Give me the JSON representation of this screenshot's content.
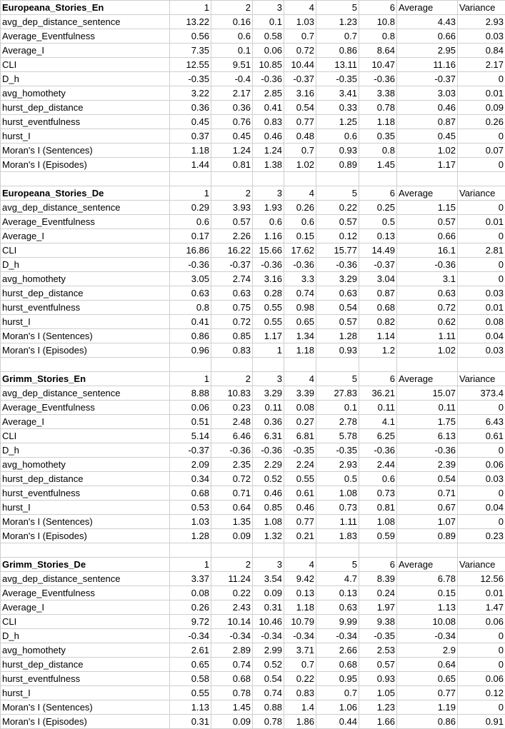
{
  "columns": [
    "1",
    "2",
    "3",
    "4",
    "5",
    "6",
    "Average",
    "Variance"
  ],
  "sections": [
    {
      "title": "Europeana_Stories_En",
      "rows": [
        {
          "name": "avg_dep_distance_sentence",
          "values": [
            "13.22",
            "0.16",
            "0.1",
            "1.03",
            "1.23",
            "10.8",
            "4.43",
            "2.93"
          ]
        },
        {
          "name": "Average_Eventfulness",
          "values": [
            "0.56",
            "0.6",
            "0.58",
            "0.7",
            "0.7",
            "0.8",
            "0.66",
            "0.03"
          ]
        },
        {
          "name": "Average_I",
          "values": [
            "7.35",
            "0.1",
            "0.06",
            "0.72",
            "0.86",
            "8.64",
            "2.95",
            "0.84"
          ]
        },
        {
          "name": "CLI",
          "values": [
            "12.55",
            "9.51",
            "10.85",
            "10.44",
            "13.11",
            "10.47",
            "11.16",
            "2.17"
          ]
        },
        {
          "name": "D_h",
          "values": [
            "-0.35",
            "-0.4",
            "-0.36",
            "-0.37",
            "-0.35",
            "-0.36",
            "-0.37",
            "0"
          ]
        },
        {
          "name": "avg_homothety",
          "values": [
            "3.22",
            "2.17",
            "2.85",
            "3.16",
            "3.41",
            "3.38",
            "3.03",
            "0.01"
          ]
        },
        {
          "name": "hurst_dep_distance",
          "values": [
            "0.36",
            "0.36",
            "0.41",
            "0.54",
            "0.33",
            "0.78",
            "0.46",
            "0.09"
          ]
        },
        {
          "name": "hurst_eventfulness",
          "values": [
            "0.45",
            "0.76",
            "0.83",
            "0.77",
            "1.25",
            "1.18",
            "0.87",
            "0.26"
          ]
        },
        {
          "name": "hurst_I",
          "values": [
            "0.37",
            "0.45",
            "0.46",
            "0.48",
            "0.6",
            "0.35",
            "0.45",
            "0"
          ]
        },
        {
          "name": "Moran's I (Sentences)",
          "values": [
            "1.18",
            "1.24",
            "1.24",
            "0.7",
            "0.93",
            "0.8",
            "1.02",
            "0.07"
          ]
        },
        {
          "name": "Moran's I (Episodes)",
          "values": [
            "1.44",
            "0.81",
            "1.38",
            "1.02",
            "0.89",
            "1.45",
            "1.17",
            "0"
          ]
        }
      ]
    },
    {
      "title": "Europeana_Stories_De",
      "rows": [
        {
          "name": "avg_dep_distance_sentence",
          "values": [
            "0.29",
            "3.93",
            "1.93",
            "0.26",
            "0.22",
            "0.25",
            "1.15",
            "0"
          ]
        },
        {
          "name": "Average_Eventfulness",
          "values": [
            "0.6",
            "0.57",
            "0.6",
            "0.6",
            "0.57",
            "0.5",
            "0.57",
            "0.01"
          ]
        },
        {
          "name": "Average_I",
          "values": [
            "0.17",
            "2.26",
            "1.16",
            "0.15",
            "0.12",
            "0.13",
            "0.66",
            "0"
          ]
        },
        {
          "name": "CLI",
          "values": [
            "16.86",
            "16.22",
            "15.66",
            "17.62",
            "15.77",
            "14.49",
            "16.1",
            "2.81"
          ]
        },
        {
          "name": "D_h",
          "values": [
            "-0.36",
            "-0.37",
            "-0.36",
            "-0.36",
            "-0.36",
            "-0.37",
            "-0.36",
            "0"
          ]
        },
        {
          "name": "avg_homothety",
          "values": [
            "3.05",
            "2.74",
            "3.16",
            "3.3",
            "3.29",
            "3.04",
            "3.1",
            "0"
          ]
        },
        {
          "name": "hurst_dep_distance",
          "values": [
            "0.63",
            "0.63",
            "0.28",
            "0.74",
            "0.63",
            "0.87",
            "0.63",
            "0.03"
          ]
        },
        {
          "name": "hurst_eventfulness",
          "values": [
            "0.8",
            "0.75",
            "0.55",
            "0.98",
            "0.54",
            "0.68",
            "0.72",
            "0.01"
          ]
        },
        {
          "name": "hurst_I",
          "values": [
            "0.41",
            "0.72",
            "0.55",
            "0.65",
            "0.57",
            "0.82",
            "0.62",
            "0.08"
          ]
        },
        {
          "name": "Moran's I (Sentences)",
          "values": [
            "0.86",
            "0.85",
            "1.17",
            "1.34",
            "1.28",
            "1.14",
            "1.11",
            "0.04"
          ]
        },
        {
          "name": "Moran's I (Episodes)",
          "values": [
            "0.96",
            "0.83",
            "1",
            "1.18",
            "0.93",
            "1.2",
            "1.02",
            "0.03"
          ]
        }
      ]
    },
    {
      "title": "Grimm_Stories_En",
      "rows": [
        {
          "name": "avg_dep_distance_sentence",
          "values": [
            "8.88",
            "10.83",
            "3.29",
            "3.39",
            "27.83",
            "36.21",
            "15.07",
            "373.4"
          ]
        },
        {
          "name": "Average_Eventfulness",
          "values": [
            "0.06",
            "0.23",
            "0.11",
            "0.08",
            "0.1",
            "0.11",
            "0.11",
            "0"
          ]
        },
        {
          "name": "Average_I",
          "values": [
            "0.51",
            "2.48",
            "0.36",
            "0.27",
            "2.78",
            "4.1",
            "1.75",
            "6.43"
          ]
        },
        {
          "name": "CLI",
          "values": [
            "5.14",
            "6.46",
            "6.31",
            "6.81",
            "5.78",
            "6.25",
            "6.13",
            "0.61"
          ]
        },
        {
          "name": "D_h",
          "values": [
            "-0.37",
            "-0.36",
            "-0.36",
            "-0.35",
            "-0.35",
            "-0.36",
            "-0.36",
            "0"
          ]
        },
        {
          "name": "avg_homothety",
          "values": [
            "2.09",
            "2.35",
            "2.29",
            "2.24",
            "2.93",
            "2.44",
            "2.39",
            "0.06"
          ]
        },
        {
          "name": "hurst_dep_distance",
          "values": [
            "0.34",
            "0.72",
            "0.52",
            "0.55",
            "0.5",
            "0.6",
            "0.54",
            "0.03"
          ]
        },
        {
          "name": "hurst_eventfulness",
          "values": [
            "0.68",
            "0.71",
            "0.46",
            "0.61",
            "1.08",
            "0.73",
            "0.71",
            "0"
          ]
        },
        {
          "name": "hurst_I",
          "values": [
            "0.53",
            "0.64",
            "0.85",
            "0.46",
            "0.73",
            "0.81",
            "0.67",
            "0.04"
          ]
        },
        {
          "name": "Moran's I (Sentences)",
          "values": [
            "1.03",
            "1.35",
            "1.08",
            "0.77",
            "1.11",
            "1.08",
            "1.07",
            "0"
          ]
        },
        {
          "name": "Moran's I (Episodes)",
          "values": [
            "1.28",
            "0.09",
            "1.32",
            "0.21",
            "1.83",
            "0.59",
            "0.89",
            "0.23"
          ]
        }
      ]
    },
    {
      "title": "Grimm_Stories_De",
      "rows": [
        {
          "name": "avg_dep_distance_sentence",
          "values": [
            "3.37",
            "11.24",
            "3.54",
            "9.42",
            "4.7",
            "8.39",
            "6.78",
            "12.56"
          ]
        },
        {
          "name": "Average_Eventfulness",
          "values": [
            "0.08",
            "0.22",
            "0.09",
            "0.13",
            "0.13",
            "0.24",
            "0.15",
            "0.01"
          ]
        },
        {
          "name": "Average_I",
          "values": [
            "0.26",
            "2.43",
            "0.31",
            "1.18",
            "0.63",
            "1.97",
            "1.13",
            "1.47"
          ]
        },
        {
          "name": "CLI",
          "values": [
            "9.72",
            "10.14",
            "10.46",
            "10.79",
            "9.99",
            "9.38",
            "10.08",
            "0.06"
          ]
        },
        {
          "name": "D_h",
          "values": [
            "-0.34",
            "-0.34",
            "-0.34",
            "-0.34",
            "-0.34",
            "-0.35",
            "-0.34",
            "0"
          ]
        },
        {
          "name": "avg_homothety",
          "values": [
            "2.61",
            "2.89",
            "2.99",
            "3.71",
            "2.66",
            "2.53",
            "2.9",
            "0"
          ]
        },
        {
          "name": "hurst_dep_distance",
          "values": [
            "0.65",
            "0.74",
            "0.52",
            "0.7",
            "0.68",
            "0.57",
            "0.64",
            "0"
          ]
        },
        {
          "name": "hurst_eventfulness",
          "values": [
            "0.58",
            "0.68",
            "0.54",
            "0.22",
            "0.95",
            "0.93",
            "0.65",
            "0.06"
          ]
        },
        {
          "name": "hurst_I",
          "values": [
            "0.55",
            "0.78",
            "0.74",
            "0.83",
            "0.7",
            "1.05",
            "0.77",
            "0.12"
          ]
        },
        {
          "name": "Moran's I (Sentences)",
          "values": [
            "1.13",
            "1.45",
            "0.88",
            "1.4",
            "1.06",
            "1.23",
            "1.19",
            "0"
          ]
        },
        {
          "name": "Moran's I (Episodes)",
          "values": [
            "0.31",
            "0.09",
            "0.78",
            "1.86",
            "0.44",
            "1.66",
            "0.86",
            "0.91"
          ]
        }
      ]
    }
  ]
}
